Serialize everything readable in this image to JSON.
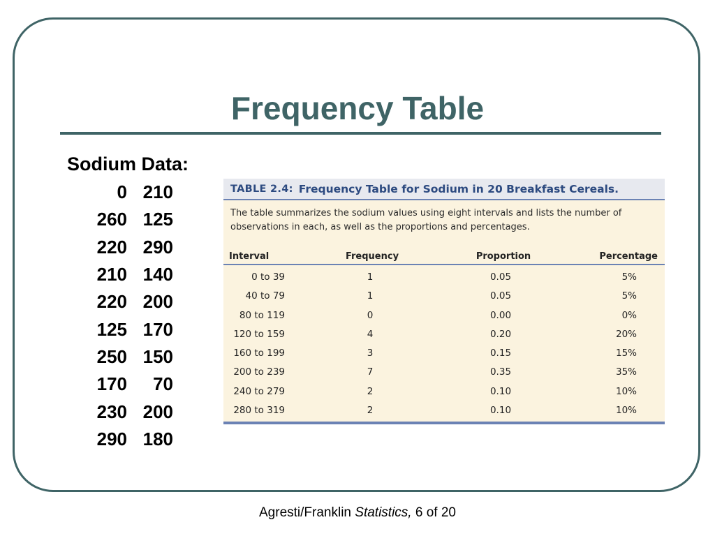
{
  "slide": {
    "title": "Frequency Table",
    "sodium_heading": "Sodium Data:",
    "sodium_rows": [
      [
        "0",
        "210"
      ],
      [
        "260",
        "125"
      ],
      [
        "220",
        "290"
      ],
      [
        "210",
        "140"
      ],
      [
        "220",
        "200"
      ],
      [
        "125",
        "170"
      ],
      [
        "250",
        "150"
      ],
      [
        "170",
        "70"
      ],
      [
        "230",
        "200"
      ],
      [
        "290",
        "180"
      ]
    ],
    "accent_color": "#3f6466"
  },
  "book_table": {
    "tag": "TABLE 2.4:",
    "caption": "Frequency Table for Sodium in 20 Breakfast Cereals.",
    "description": "The table summarizes the sodium values using eight intervals and lists the number of observations in each, as well as the proportions and percentages.",
    "headers": {
      "interval": "Interval",
      "frequency": "Frequency",
      "proportion": "Proportion",
      "percentage": "Percentage"
    },
    "rows": [
      {
        "interval": "0 to 39",
        "frequency": "1",
        "proportion": "0.05",
        "percentage": "5%"
      },
      {
        "interval": "40 to 79",
        "frequency": "1",
        "proportion": "0.05",
        "percentage": "5%"
      },
      {
        "interval": "80 to 119",
        "frequency": "0",
        "proportion": "0.00",
        "percentage": "0%"
      },
      {
        "interval": "120 to 159",
        "frequency": "4",
        "proportion": "0.20",
        "percentage": "20%"
      },
      {
        "interval": "160 to 199",
        "frequency": "3",
        "proportion": "0.15",
        "percentage": "15%"
      },
      {
        "interval": "200 to 239",
        "frequency": "7",
        "proportion": "0.35",
        "percentage": "35%"
      },
      {
        "interval": "240 to 279",
        "frequency": "2",
        "proportion": "0.10",
        "percentage": "10%"
      },
      {
        "interval": "280 to 319",
        "frequency": "2",
        "proportion": "0.10",
        "percentage": "10%"
      }
    ],
    "header_color": "#2c4a80",
    "rule_color": "#6b82b4",
    "background_color": "#fbf3df"
  },
  "footer": {
    "authors": "Agresti/Franklin",
    "book": "Statistics,",
    "page": "6 of 20"
  }
}
